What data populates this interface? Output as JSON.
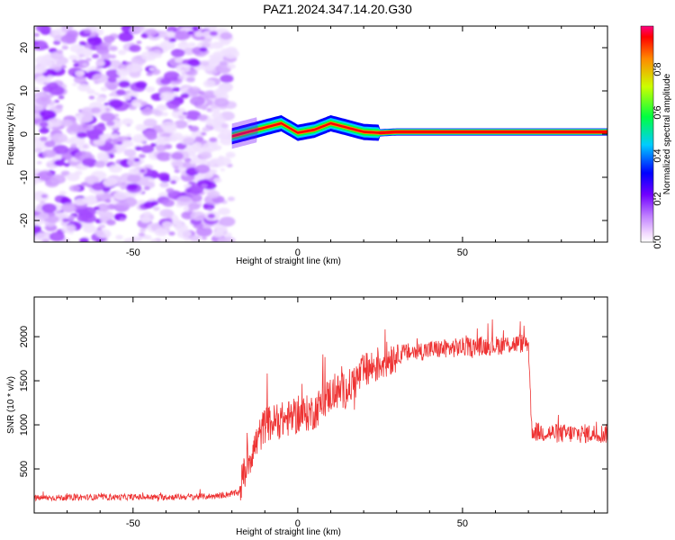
{
  "title": "PAZ1.2024.347.14.20.G30",
  "chart_data": [
    {
      "type": "heatmap",
      "xlabel": "Height of straight line (km)",
      "ylabel": "Frequency (Hz)",
      "xlim": [
        -80,
        94
      ],
      "ylim": [
        -25,
        25
      ],
      "xticks": [
        -50,
        0,
        50
      ],
      "yticks": [
        -20,
        -10,
        0,
        10,
        20
      ],
      "colorbar": {
        "label": "Normalized spectral amplitude",
        "range": [
          0,
          1
        ],
        "ticks": [
          "0.0",
          "0.2",
          "0.4",
          "0.6",
          "0.8"
        ]
      },
      "signal_track": {
        "x": [
          -20,
          -15,
          -10,
          -5,
          0,
          5,
          10,
          15,
          20,
          25,
          30,
          40,
          60,
          80,
          94
        ],
        "freq": [
          -0.5,
          0.5,
          1.5,
          2.5,
          0.3,
          1.0,
          2.5,
          1.5,
          0.5,
          0.3,
          0.5,
          0.5,
          0.5,
          0.5,
          0.5
        ]
      }
    },
    {
      "type": "line",
      "xlabel": "Height of straight line (km)",
      "ylabel": "SNR (10 * v/v)",
      "xlim": [
        -80,
        94
      ],
      "ylim": [
        0,
        2450
      ],
      "xticks": [
        -50,
        0,
        50
      ],
      "yticks": [
        500,
        1000,
        1500,
        2000
      ],
      "series_color": "#ee3333",
      "trend": {
        "x": [
          -80,
          -60,
          -40,
          -25,
          -18,
          -15,
          -10,
          -5,
          0,
          5,
          10,
          15,
          20,
          25,
          30,
          40,
          50,
          60,
          70,
          71,
          72,
          80,
          94
        ],
        "y": [
          170,
          180,
          180,
          190,
          230,
          600,
          1000,
          1050,
          1100,
          1150,
          1350,
          1400,
          1600,
          1700,
          1800,
          1850,
          1880,
          1900,
          1930,
          950,
          920,
          900,
          900
        ]
      }
    }
  ]
}
